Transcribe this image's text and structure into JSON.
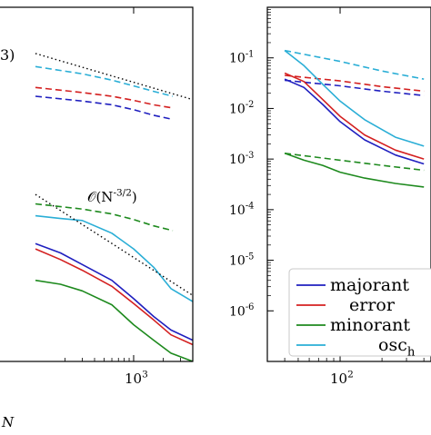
{
  "chart_data": [
    {
      "type": "line",
      "xscale": "log",
      "yscale": "log",
      "xlabel": "N",
      "x_tick_labels": [
        "10^3"
      ],
      "annotations": [
        {
          "text": "3)"
        },
        {
          "text": "O(N^{-3/2})"
        }
      ],
      "series": [
        {
          "color": "#1f1fbf",
          "style": "solid",
          "x": [
            100,
            180,
            300,
            600,
            1000,
            1600,
            2400,
            4000
          ],
          "y": [
            0.027,
            0.022,
            0.017,
            0.012,
            0.008,
            0.0054,
            0.004,
            0.0032
          ]
        },
        {
          "color": "#d42020",
          "style": "solid",
          "x": [
            100,
            180,
            300,
            600,
            1000,
            1600,
            2400,
            4000
          ],
          "y": [
            0.024,
            0.019,
            0.015,
            0.0105,
            0.0072,
            0.005,
            0.0036,
            0.0029
          ]
        },
        {
          "color": "#1e8a1e",
          "style": "solid",
          "x": [
            100,
            180,
            300,
            600,
            1000,
            1600,
            2400,
            4000
          ],
          "y": [
            0.012,
            0.011,
            0.0095,
            0.007,
            0.0045,
            0.0032,
            0.0024,
            0.002
          ]
        },
        {
          "color": "#2aaed6",
          "style": "solid",
          "x": [
            100,
            180,
            300,
            600,
            1000,
            1600,
            2400,
            4000
          ],
          "y": [
            0.05,
            0.047,
            0.045,
            0.034,
            0.024,
            0.016,
            0.01,
            0.0075
          ]
        },
        {
          "color": "#1f1fbf",
          "style": "dashed",
          "x": [
            100,
            300,
            600,
            1000,
            1600,
            2500
          ],
          "y": [
            0.7,
            0.63,
            0.58,
            0.52,
            0.46,
            0.42
          ]
        },
        {
          "color": "#d42020",
          "style": "dashed",
          "x": [
            100,
            300,
            600,
            1000,
            1600,
            2500
          ],
          "y": [
            0.85,
            0.76,
            0.7,
            0.64,
            0.58,
            0.54
          ]
        },
        {
          "color": "#1e8a1e",
          "style": "dashed",
          "x": [
            100,
            300,
            600,
            1000,
            1600,
            2500
          ],
          "y": [
            0.065,
            0.058,
            0.052,
            0.046,
            0.04,
            0.036
          ]
        },
        {
          "color": "#2aaed6",
          "style": "dashed",
          "x": [
            100,
            300,
            600,
            1000,
            1600,
            2500
          ],
          "y": [
            1.35,
            1.15,
            1.0,
            0.88,
            0.78,
            0.7
          ]
        },
        {
          "color": "#000000",
          "style": "dotted",
          "x": [
            100,
            4000
          ],
          "y": [
            1.8,
            0.65
          ]
        },
        {
          "color": "#000000",
          "style": "dotted",
          "x": [
            100,
            4000
          ],
          "y": [
            0.08,
            0.0086
          ]
        }
      ]
    },
    {
      "type": "line",
      "xscale": "log",
      "yscale": "log",
      "ylim": [
        1e-07,
        1
      ],
      "y_tick_labels": [
        "10^{-6}",
        "10^{-5}",
        "10^{-4}",
        "10^{-3}",
        "10^{-2}",
        "10^{-1}"
      ],
      "x_tick_labels": [
        "10^2"
      ],
      "legend": {
        "placement": "bottom-right",
        "entries": [
          {
            "label": "majorant",
            "color": "#1f1fbf"
          },
          {
            "label": "error",
            "color": "#d42020"
          },
          {
            "label": "minorant",
            "color": "#1e8a1e"
          },
          {
            "label": "osc_h",
            "color": "#2aaed6"
          }
        ]
      },
      "series": [
        {
          "color": "#2aaed6",
          "style": "dashed",
          "x": [
            40,
            100,
            200,
            400
          ],
          "y": [
            0.14,
            0.085,
            0.055,
            0.038
          ]
        },
        {
          "color": "#d42020",
          "style": "dashed",
          "x": [
            40,
            100,
            200,
            400
          ],
          "y": [
            0.045,
            0.035,
            0.027,
            0.022
          ]
        },
        {
          "color": "#1f1fbf",
          "style": "dashed",
          "x": [
            40,
            100,
            200,
            400
          ],
          "y": [
            0.036,
            0.028,
            0.022,
            0.018
          ]
        },
        {
          "color": "#1e8a1e",
          "style": "dashed",
          "x": [
            40,
            100,
            200,
            400
          ],
          "y": [
            0.0013,
            0.00095,
            0.00075,
            0.0006
          ]
        },
        {
          "color": "#2aaed6",
          "style": "solid",
          "x": [
            40,
            55,
            75,
            100,
            150,
            250,
            400
          ],
          "y": [
            0.14,
            0.07,
            0.03,
            0.014,
            0.006,
            0.0027,
            0.0018
          ]
        },
        {
          "color": "#d42020",
          "style": "solid",
          "x": [
            40,
            55,
            75,
            100,
            150,
            250,
            400
          ],
          "y": [
            0.05,
            0.034,
            0.015,
            0.007,
            0.003,
            0.0015,
            0.001
          ]
        },
        {
          "color": "#1f1fbf",
          "style": "solid",
          "x": [
            40,
            55,
            75,
            100,
            150,
            250,
            400
          ],
          "y": [
            0.038,
            0.026,
            0.012,
            0.0055,
            0.0024,
            0.0012,
            0.0008
          ]
        },
        {
          "color": "#1e8a1e",
          "style": "solid",
          "x": [
            40,
            55,
            75,
            100,
            150,
            250,
            400
          ],
          "y": [
            0.0013,
            0.00095,
            0.00075,
            0.00055,
            0.00042,
            0.00033,
            0.00028
          ]
        }
      ]
    }
  ]
}
